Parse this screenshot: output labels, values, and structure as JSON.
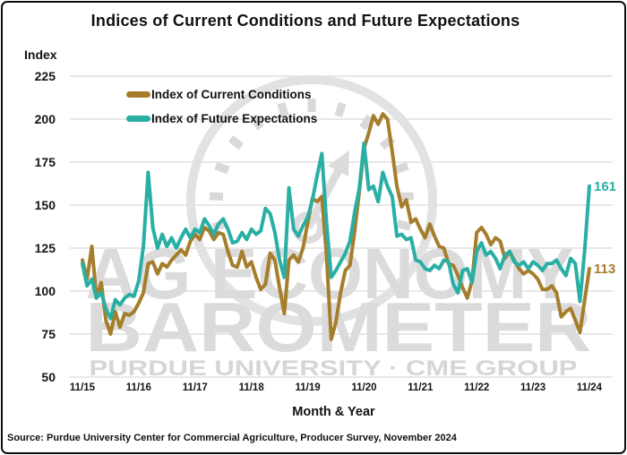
{
  "header": {
    "title": "Indices of Current Conditions and Future Expectations"
  },
  "axes": {
    "y_label": "Index",
    "x_label": "Month & Year",
    "y_ticks": [
      225,
      200,
      175,
      150,
      125,
      100,
      75,
      50
    ],
    "x_ticks": [
      "11/15",
      "11/16",
      "11/17",
      "11/18",
      "11/19",
      "11/20",
      "11/21",
      "11/22",
      "11/23",
      "11/24"
    ]
  },
  "legend": [
    {
      "label": "Index of Current Conditions",
      "color": "#A57E2C"
    },
    {
      "label": "Index of Future Expectations",
      "color": "#29AFA4"
    }
  ],
  "end_labels": [
    {
      "text": "161",
      "value": 161,
      "color": "#29AFA4"
    },
    {
      "text": "113",
      "value": 113,
      "color": "#A57E2C"
    }
  ],
  "watermark": {
    "line1": "AG ECONOMY",
    "line2": "BAROMETER",
    "line3": "PURDUE UNIVERSITY  ·  CME GROUP"
  },
  "footer": {
    "source": "Source: Purdue University Center for Commercial Agriculture, Producer Survey, November 2024"
  },
  "chart_data": {
    "type": "line",
    "title": "Indices of Current Conditions and Future Expectations",
    "xlabel": "Month & Year",
    "ylabel": "Index",
    "ylim": [
      50,
      225
    ],
    "grid": true,
    "legend_position": "top-left",
    "x_start": "2015-11",
    "x_end": "2024-11",
    "x_frequency": "monthly",
    "x_tick_labels": [
      "11/15",
      "11/16",
      "11/17",
      "11/18",
      "11/19",
      "11/20",
      "11/21",
      "11/22",
      "11/23",
      "11/24"
    ],
    "series": [
      {
        "name": "Index of Current Conditions",
        "color": "#A57E2C",
        "values": [
          118,
          107,
          126,
          96,
          105,
          83,
          75,
          88,
          79,
          87,
          86,
          88,
          93,
          99,
          116,
          117,
          110,
          116,
          114,
          118,
          121,
          124,
          121,
          129,
          133,
          130,
          137,
          135,
          130,
          134,
          133,
          123,
          115,
          114,
          123,
          114,
          117,
          108,
          101,
          104,
          122,
          118,
          102,
          87,
          118,
          121,
          117,
          125,
          140,
          154,
          152,
          155,
          121,
          72,
          82,
          99,
          112,
          115,
          135,
          158,
          183,
          192,
          202,
          197,
          203,
          200,
          181,
          161,
          149,
          153,
          140,
          142,
          136,
          131,
          139,
          132,
          126,
          125,
          116,
          115,
          109,
          102,
          96,
          106,
          134,
          137,
          133,
          127,
          131,
          129,
          119,
          123,
          118,
          113,
          110,
          112,
          110,
          107,
          101,
          101,
          103,
          99,
          85,
          88,
          90,
          83,
          76,
          95,
          113
        ]
      },
      {
        "name": "Index of Future Expectations",
        "color": "#29AFA4",
        "values": [
          116,
          103,
          107,
          96,
          99,
          90,
          84,
          95,
          92,
          96,
          98,
          97,
          106,
          126,
          169,
          137,
          125,
          133,
          126,
          131,
          125,
          131,
          136,
          131,
          136,
          134,
          142,
          138,
          133,
          139,
          142,
          136,
          128,
          129,
          134,
          130,
          136,
          133,
          135,
          148,
          145,
          134,
          118,
          108,
          160,
          136,
          132,
          138,
          143,
          153,
          167,
          180,
          140,
          108,
          112,
          117,
          122,
          129,
          146,
          160,
          186,
          159,
          161,
          152,
          169,
          161,
          155,
          132,
          133,
          130,
          131,
          118,
          117,
          113,
          112,
          115,
          113,
          118,
          117,
          104,
          99,
          112,
          113,
          105,
          123,
          128,
          121,
          123,
          119,
          113,
          121,
          123,
          117,
          115,
          117,
          113,
          117,
          115,
          112,
          116,
          116,
          118,
          113,
          109,
          119,
          116,
          94,
          124,
          161
        ]
      }
    ],
    "last_value_labels": {
      "Index of Future Expectations": 161,
      "Index of Current Conditions": 113
    }
  }
}
